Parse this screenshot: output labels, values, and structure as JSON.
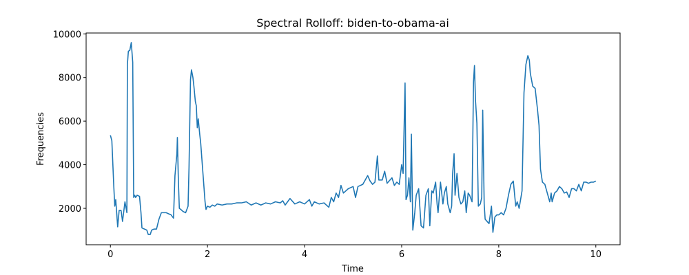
{
  "chart_data": {
    "type": "line",
    "title": "Spectral Rolloff: biden-to-obama-ai",
    "xlabel": "Time",
    "ylabel": "Frequencies",
    "color": "#1f77b4",
    "xlim": [
      -0.5,
      10.5
    ],
    "ylim": [
      330,
      10040
    ],
    "xticks": [
      0,
      2,
      4,
      6,
      8,
      10
    ],
    "yticks": [
      2000,
      4000,
      6000,
      8000,
      10000
    ],
    "x": [
      0,
      0.03,
      0.07,
      0.09,
      0.11,
      0.15,
      0.18,
      0.22,
      0.25,
      0.3,
      0.34,
      0.35,
      0.37,
      0.4,
      0.43,
      0.46,
      0.48,
      0.5,
      0.52,
      0.55,
      0.6,
      0.63,
      0.65,
      0.7,
      0.75,
      0.78,
      0.82,
      0.85,
      0.9,
      0.95,
      1.0,
      1.05,
      1.1,
      1.15,
      1.2,
      1.25,
      1.3,
      1.33,
      1.37,
      1.38,
      1.4,
      1.42,
      1.45,
      1.5,
      1.55,
      1.6,
      1.62,
      1.65,
      1.67,
      1.7,
      1.72,
      1.75,
      1.77,
      1.79,
      1.81,
      1.84,
      1.86,
      1.9,
      1.95,
      1.97,
      2.0,
      2.05,
      2.1,
      2.15,
      2.2,
      2.3,
      2.4,
      2.5,
      2.6,
      2.7,
      2.8,
      2.9,
      3.0,
      3.1,
      3.2,
      3.3,
      3.4,
      3.5,
      3.55,
      3.6,
      3.7,
      3.8,
      3.9,
      4.0,
      4.1,
      4.15,
      4.2,
      4.3,
      4.4,
      4.5,
      4.55,
      4.6,
      4.65,
      4.7,
      4.75,
      4.8,
      4.9,
      5.0,
      5.05,
      5.1,
      5.2,
      5.3,
      5.35,
      5.4,
      5.45,
      5.5,
      5.53,
      5.6,
      5.65,
      5.7,
      5.8,
      5.85,
      5.9,
      5.95,
      6.0,
      6.03,
      6.07,
      6.09,
      6.12,
      6.15,
      6.18,
      6.2,
      6.23,
      6.27,
      6.3,
      6.35,
      6.4,
      6.45,
      6.5,
      6.55,
      6.58,
      6.62,
      6.65,
      6.7,
      6.73,
      6.75,
      6.8,
      6.85,
      6.88,
      6.92,
      6.95,
      7.0,
      7.03,
      7.05,
      7.08,
      7.1,
      7.14,
      7.18,
      7.22,
      7.26,
      7.3,
      7.33,
      7.37,
      7.4,
      7.45,
      7.48,
      7.5,
      7.52,
      7.55,
      7.58,
      7.62,
      7.65,
      7.67,
      7.7,
      7.72,
      7.76,
      7.8,
      7.85,
      7.88,
      7.92,
      7.96,
      8.0,
      8.05,
      8.1,
      8.15,
      8.2,
      8.25,
      8.3,
      8.35,
      8.38,
      8.42,
      8.48,
      8.52,
      8.56,
      8.6,
      8.63,
      8.65,
      8.7,
      8.75,
      8.8,
      8.83,
      8.86,
      8.9,
      8.95,
      9.0,
      9.05,
      9.08,
      9.1,
      9.15,
      9.2,
      9.25,
      9.3,
      9.35,
      9.4,
      9.45,
      9.5,
      9.55,
      9.6,
      9.65,
      9.7,
      9.75,
      9.8,
      9.85,
      9.9,
      9.95,
      10.0
    ],
    "values": [
      5350,
      5100,
      3000,
      2100,
      2400,
      1150,
      1900,
      1900,
      1400,
      2300,
      1800,
      8600,
      9200,
      9250,
      9600,
      8700,
      2500,
      2600,
      2500,
      2600,
      2550,
      1800,
      1100,
      1050,
      1000,
      800,
      800,
      1000,
      1050,
      1050,
      1500,
      1800,
      1800,
      1800,
      1750,
      1700,
      1550,
      3500,
      4500,
      5250,
      3300,
      2000,
      1950,
      1850,
      1800,
      2100,
      3900,
      7900,
      8350,
      8000,
      7600,
      6900,
      6700,
      5700,
      6100,
      5400,
      5000,
      3800,
      2300,
      1950,
      2100,
      2050,
      2150,
      2100,
      2200,
      2150,
      2200,
      2200,
      2250,
      2250,
      2300,
      2150,
      2250,
      2150,
      2250,
      2200,
      2300,
      2250,
      2350,
      2150,
      2450,
      2200,
      2300,
      2200,
      2400,
      2100,
      2300,
      2200,
      2250,
      2050,
      2500,
      2300,
      2700,
      2500,
      3050,
      2700,
      2900,
      3000,
      2500,
      3000,
      3100,
      3500,
      3250,
      3100,
      3200,
      4400,
      3300,
      3300,
      3700,
      3150,
      3400,
      3050,
      3200,
      3100,
      4000,
      3600,
      7750,
      2400,
      2600,
      3400,
      2300,
      5400,
      1000,
      1800,
      2600,
      2900,
      1200,
      1100,
      2600,
      2900,
      1200,
      2800,
      2700,
      3200,
      2200,
      1800,
      3200,
      2200,
      2700,
      3000,
      2200,
      1800,
      2100,
      3600,
      4500,
      2600,
      3600,
      2500,
      2200,
      2300,
      2800,
      1800,
      2700,
      2600,
      2300,
      7800,
      8550,
      7000,
      5900,
      2100,
      2200,
      2500,
      6500,
      2200,
      1500,
      1400,
      1300,
      2100,
      900,
      1600,
      1700,
      1700,
      1800,
      1700,
      2000,
      2600,
      3100,
      3250,
      2100,
      2300,
      2000,
      2800,
      7300,
      8600,
      9000,
      8800,
      8200,
      7600,
      7500,
      6500,
      5800,
      3800,
      3200,
      3100,
      2700,
      2300,
      2700,
      2300,
      2700,
      2800,
      3000,
      2900,
      2700,
      2750,
      2500,
      2900,
      2900,
      2800,
      3100,
      2800,
      3200,
      3200,
      3150,
      3200,
      3200,
      3250
    ]
  }
}
